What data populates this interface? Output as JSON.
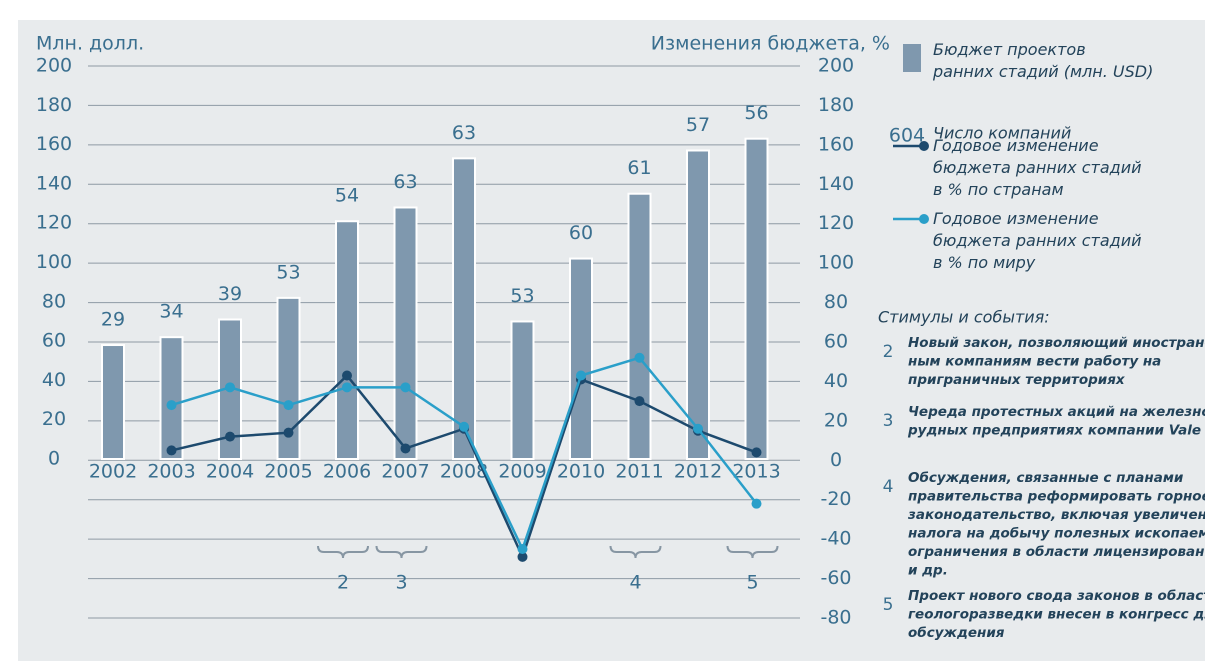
{
  "chart_data": {
    "type": "bar",
    "ylabel": "Млн. долл.",
    "y2label": "Изменения бюджета, %",
    "categories": [
      "2002",
      "2003",
      "2004",
      "2005",
      "2006",
      "2007",
      "2008",
      "2009",
      "2010",
      "2011",
      "2012",
      "2013"
    ],
    "ylim": [
      0,
      200
    ],
    "yticks": [
      0,
      20,
      40,
      60,
      80,
      100,
      120,
      140,
      160,
      180,
      200
    ],
    "y2lim": [
      -80,
      200
    ],
    "y2ticks": [
      -80,
      -60,
      -40,
      -20,
      0,
      20,
      40,
      60,
      80,
      100,
      120,
      140,
      160,
      180,
      200
    ],
    "grid": true,
    "bars": {
      "name": "Бюджет проектов\nранних стадий (млн. USD)",
      "color": "#7f98ae",
      "values": [
        58,
        62,
        71,
        82,
        121,
        128,
        153,
        70,
        102,
        135,
        157,
        163
      ]
    },
    "counts": {
      "name": "Число компаний",
      "sample": 604,
      "values": [
        29,
        34,
        39,
        53,
        54,
        63,
        63,
        53,
        60,
        61,
        57,
        56
      ]
    },
    "series": [
      {
        "name": "Годовое изменение\nбюджета ранних стадий\nв % по странам",
        "color": "#1d4a6e",
        "axis": "y2",
        "values": [
          null,
          5,
          12,
          14,
          43,
          6,
          16,
          -49,
          41,
          30,
          15,
          4
        ]
      },
      {
        "name": "Годовое изменение\nбюджета ранних стадий\nв % по миру",
        "color": "#2a9fc9",
        "axis": "y2",
        "values": [
          null,
          28,
          37,
          28,
          37,
          37,
          17,
          -45,
          43,
          52,
          16,
          -22
        ]
      }
    ],
    "events": {
      "title": "Стимулы и события:",
      "items": [
        {
          "number": 2,
          "category": "2006",
          "text": "Новый закон, позволяющий иностран-\nным компаниям вести работу на\nприграничных территориях"
        },
        {
          "number": 3,
          "category": "2007",
          "text": "Череда протестных акций на железно-\nрудных предприятиях компании Vale"
        },
        {
          "number": 4,
          "category": "2011",
          "text": "Обсуждения, связанные с планами\nправительства реформировать горное\nзаконодательство, включая увеличение\nналога на добычу полезных ископаемых,\nограничения в области лицензирования\nи др."
        },
        {
          "number": 5,
          "category": "2013",
          "text": "Проект нового свода законов в области\nгеологоразведки внесен в конгресс для\nобсуждения"
        }
      ]
    }
  }
}
